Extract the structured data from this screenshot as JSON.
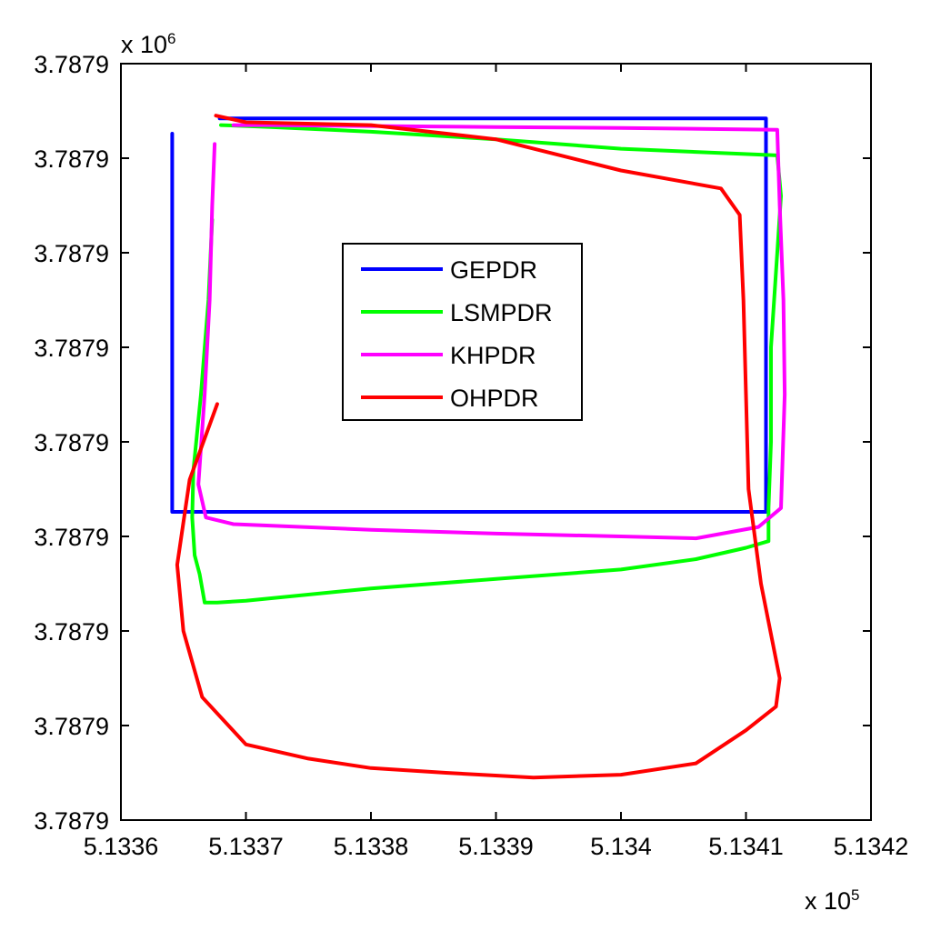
{
  "chart_data": {
    "type": "line",
    "title": "",
    "xlabel": "",
    "ylabel": "",
    "x_multiplier": {
      "base": "x 10",
      "exponent": "5"
    },
    "y_multiplier": {
      "base": "x 10",
      "exponent": "6"
    },
    "x_tick_labels": [
      "5.1336",
      "5.1337",
      "5.1338",
      "5.1339",
      "5.134",
      "5.1341",
      "5.1342"
    ],
    "y_tick_labels": [
      "3.7879",
      "3.7879",
      "3.7879",
      "3.7879",
      "3.7879",
      "3.7879",
      "3.7879",
      "3.7879",
      "3.7879"
    ],
    "y_tick_labels_note_unit": "stored top-to-bottom",
    "xlim": [
      5.1336,
      5.1342
    ],
    "ylim": [
      0,
      8
    ],
    "grid": false,
    "legend_position": "upper-center",
    "series": [
      {
        "name": "GEPDR",
        "color": "#0000ff",
        "x": [
          5.133641,
          5.133641,
          5.134116,
          5.134116,
          5.133679
        ],
        "y": [
          7.26,
          3.26,
          3.26,
          7.42,
          7.42
        ]
      },
      {
        "name": "LSMPDR",
        "color": "#00ff00",
        "x": [
          5.133673,
          5.13367,
          5.133664,
          5.133658,
          5.133657,
          5.133659,
          5.133663,
          5.133667,
          5.133677,
          5.1337,
          5.1338,
          5.1339,
          5.134,
          5.13406,
          5.1341,
          5.134118,
          5.134118,
          5.13412,
          5.13412,
          5.134125,
          5.134128,
          5.134125,
          5.134,
          5.1339,
          5.1338,
          5.13372,
          5.13368
        ],
        "y": [
          6.35,
          5.5,
          4.5,
          3.7,
          3.2,
          2.8,
          2.6,
          2.3,
          2.3,
          2.32,
          2.45,
          2.55,
          2.65,
          2.76,
          2.88,
          2.95,
          3.3,
          4.0,
          5.0,
          6.0,
          6.6,
          7.03,
          7.1,
          7.2,
          7.28,
          7.33,
          7.35
        ]
      },
      {
        "name": "KHPDR",
        "color": "#ff00ff",
        "x": [
          5.133675,
          5.133673,
          5.133671,
          5.133667,
          5.133662,
          5.133668,
          5.13369,
          5.1338,
          5.1339,
          5.134,
          5.13406,
          5.13411,
          5.134128,
          5.134131,
          5.13413,
          5.134127,
          5.134125,
          5.134,
          5.1339,
          5.1338,
          5.13372,
          5.13369
        ],
        "y": [
          7.15,
          6.5,
          5.5,
          4.5,
          3.55,
          3.2,
          3.13,
          3.07,
          3.03,
          3.0,
          2.98,
          3.1,
          3.3,
          4.5,
          5.5,
          6.5,
          7.3,
          7.32,
          7.33,
          7.34,
          7.35,
          7.35
        ]
      },
      {
        "name": "OHPDR",
        "color": "#ff0000",
        "x": [
          5.133677,
          5.133655,
          5.133645,
          5.13365,
          5.133665,
          5.1337,
          5.13375,
          5.1338,
          5.13386,
          5.13393,
          5.134,
          5.13406,
          5.1341,
          5.134124,
          5.134127,
          5.134112,
          5.134102,
          5.1341,
          5.134098,
          5.134095,
          5.13408,
          5.134,
          5.1339,
          5.1338,
          5.1337,
          5.133676
        ],
        "y": [
          4.4,
          3.6,
          2.7,
          2.0,
          1.3,
          0.8,
          0.65,
          0.55,
          0.5,
          0.45,
          0.48,
          0.6,
          0.95,
          1.2,
          1.5,
          2.5,
          3.5,
          4.5,
          5.5,
          6.4,
          6.68,
          6.87,
          7.2,
          7.35,
          7.38,
          7.45
        ]
      }
    ]
  }
}
